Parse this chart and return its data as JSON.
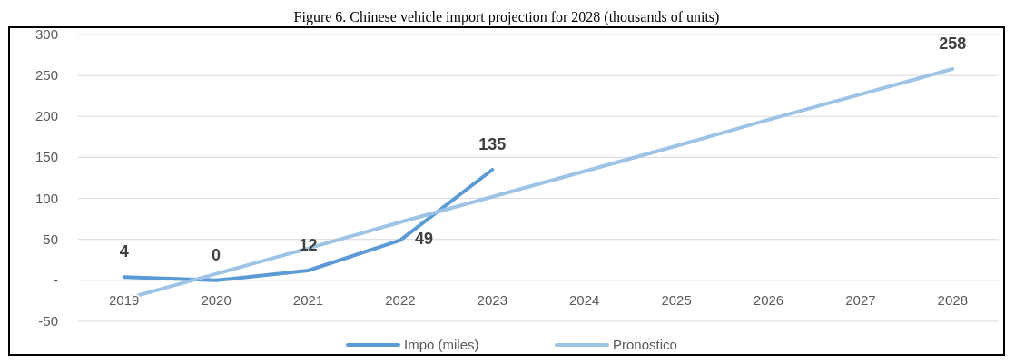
{
  "chart_data": {
    "type": "line",
    "title": "Figure 6. Chinese vehicle import projection for 2028 (thousands of units)",
    "categories": [
      "2019",
      "2020",
      "2021",
      "2022",
      "2023",
      "2024",
      "2025",
      "2026",
      "2027",
      "2028"
    ],
    "series": [
      {
        "name": "Impo (miles)",
        "color": "#5b9bd5",
        "values": [
          4,
          0,
          12,
          49,
          135,
          null,
          null,
          null,
          null,
          null
        ],
        "value_labels": [
          "4",
          "0",
          "12",
          "49",
          "135",
          null,
          null,
          null,
          null,
          null
        ]
      },
      {
        "name": "Pronostico",
        "color": "#9dc3e6",
        "values": [
          -23,
          8,
          39,
          71,
          102,
          133,
          164,
          196,
          227,
          258
        ],
        "value_labels": [
          null,
          null,
          null,
          null,
          null,
          null,
          null,
          null,
          null,
          "258"
        ]
      }
    ],
    "ylim": [
      -50,
      300
    ],
    "yticks": [
      {
        "value": -50,
        "label": "-50"
      },
      {
        "value": 0,
        "label": "-"
      },
      50,
      100,
      150,
      200,
      250,
      300
    ],
    "grid": "y",
    "legend": "bottom",
    "marker": "none",
    "line_style": "solid"
  }
}
